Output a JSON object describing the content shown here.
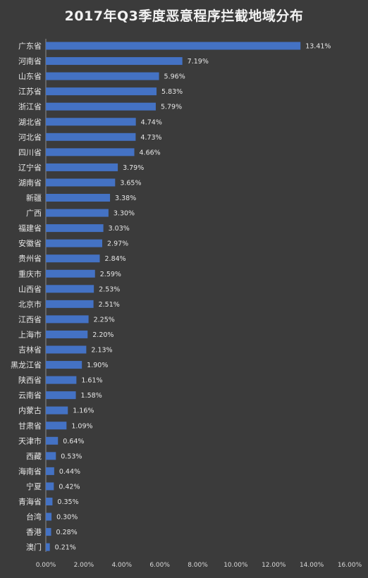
{
  "chart_data": {
    "type": "bar",
    "orientation": "horizontal",
    "title": "2017年Q3季度恶意程序拦截地域分布",
    "categories": [
      "广东省",
      "河南省",
      "山东省",
      "江苏省",
      "浙江省",
      "湖北省",
      "河北省",
      "四川省",
      "辽宁省",
      "湖南省",
      "新疆",
      "广西",
      "福建省",
      "安徽省",
      "贵州省",
      "重庆市",
      "山西省",
      "北京市",
      "江西省",
      "上海市",
      "吉林省",
      "黑龙江省",
      "陕西省",
      "云南省",
      "内蒙古",
      "甘肃省",
      "天津市",
      "西藏",
      "海南省",
      "宁夏",
      "青海省",
      "台湾",
      "香港",
      "澳门"
    ],
    "values": [
      13.41,
      7.19,
      5.96,
      5.83,
      5.79,
      4.74,
      4.73,
      4.66,
      3.79,
      3.65,
      3.38,
      3.3,
      3.03,
      2.97,
      2.84,
      2.59,
      2.53,
      2.51,
      2.25,
      2.2,
      2.13,
      1.9,
      1.61,
      1.58,
      1.16,
      1.09,
      0.64,
      0.53,
      0.44,
      0.42,
      0.35,
      0.3,
      0.28,
      0.21
    ],
    "value_labels": [
      "13.41%",
      "7.19%",
      "5.96%",
      "5.83%",
      "5.79%",
      "4.74%",
      "4.73%",
      "4.66%",
      "3.79%",
      "3.65%",
      "3.38%",
      "3.30%",
      "3.03%",
      "2.97%",
      "2.84%",
      "2.59%",
      "2.53%",
      "2.51%",
      "2.25%",
      "2.20%",
      "2.13%",
      "1.90%",
      "1.61%",
      "1.58%",
      "1.16%",
      "1.09%",
      "0.64%",
      "0.53%",
      "0.44%",
      "0.42%",
      "0.35%",
      "0.30%",
      "0.28%",
      "0.21%"
    ],
    "xlim": [
      0,
      16
    ],
    "xticks": [
      0,
      2,
      4,
      6,
      8,
      10,
      12,
      14,
      16
    ],
    "xtick_labels": [
      "0.00%",
      "2.00%",
      "4.00%",
      "6.00%",
      "8.00%",
      "10.00%",
      "12.00%",
      "14.00%",
      "16.00%"
    ],
    "grid": false,
    "legend": "none",
    "colors": {
      "background": "#3b3b3b",
      "bar": "#4472c4",
      "text": "#e6e6e6",
      "axis": "#8c8c8c"
    }
  }
}
